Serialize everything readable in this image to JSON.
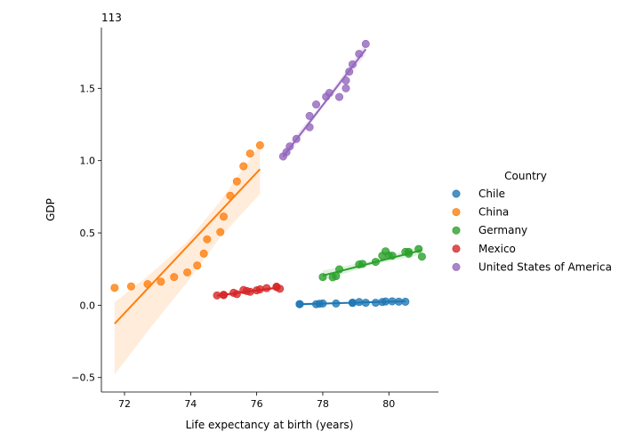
{
  "chart_data": {
    "type": "scatter",
    "xlabel": "Life expectancy at birth (years)",
    "ylabel": "GDP",
    "y_offset_label": "1e13",
    "xlim": [
      71.3,
      81.5
    ],
    "ylim": [
      -0.6,
      1.92
    ],
    "x_ticks": [
      72,
      74,
      76,
      78,
      80
    ],
    "x_tick_labels": [
      "72",
      "74",
      "76",
      "78",
      "80"
    ],
    "y_ticks": [
      -0.5,
      0.0,
      0.5,
      1.0,
      1.5
    ],
    "y_tick_labels": [
      "−0.5",
      "0.0",
      "0.5",
      "1.0",
      "1.5"
    ],
    "grid": false,
    "legend": {
      "title": "Country",
      "placement": "right"
    },
    "series": [
      {
        "name": "Chile",
        "color": "#1f77b4",
        "points": [
          [
            77.3,
            0.007
          ],
          [
            77.3,
            0.008
          ],
          [
            77.8,
            0.007
          ],
          [
            77.9,
            0.01
          ],
          [
            78.0,
            0.012
          ],
          [
            78.4,
            0.012
          ],
          [
            78.9,
            0.016
          ],
          [
            78.9,
            0.018
          ],
          [
            79.1,
            0.022
          ],
          [
            79.3,
            0.017
          ],
          [
            79.6,
            0.017
          ],
          [
            79.8,
            0.022
          ],
          [
            79.9,
            0.026
          ],
          [
            80.1,
            0.027
          ],
          [
            80.3,
            0.025
          ],
          [
            80.5,
            0.024
          ]
        ],
        "fit": [
          77.3,
          0.007,
          80.5,
          0.028
        ],
        "ci": [
          [
            77.3,
            -0.004,
            0.018
          ],
          [
            78.9,
            0.012,
            0.022
          ],
          [
            80.5,
            0.02,
            0.036
          ]
        ]
      },
      {
        "name": "China",
        "color": "#ff7f0e",
        "points": [
          [
            71.7,
            0.12
          ],
          [
            72.2,
            0.13
          ],
          [
            72.7,
            0.146
          ],
          [
            73.1,
            0.163
          ],
          [
            73.5,
            0.195
          ],
          [
            73.9,
            0.227
          ],
          [
            74.2,
            0.275
          ],
          [
            74.4,
            0.357
          ],
          [
            74.5,
            0.456
          ],
          [
            74.9,
            0.506
          ],
          [
            75.0,
            0.613
          ],
          [
            75.2,
            0.757
          ],
          [
            75.4,
            0.856
          ],
          [
            75.6,
            0.961
          ],
          [
            75.8,
            1.049
          ],
          [
            76.1,
            1.106
          ]
        ],
        "fit": [
          71.7,
          -0.128,
          76.1,
          0.941
        ],
        "ci": [
          [
            71.7,
            -0.48,
            0.02
          ],
          [
            72.8,
            -0.15,
            0.22
          ],
          [
            73.9,
            0.16,
            0.44
          ],
          [
            74.9,
            0.47,
            0.72
          ],
          [
            76.1,
            0.77,
            1.11
          ]
        ]
      },
      {
        "name": "Germany",
        "color": "#2ca02c",
        "points": [
          [
            78.0,
            0.195
          ],
          [
            78.3,
            0.193
          ],
          [
            78.4,
            0.201
          ],
          [
            78.5,
            0.248
          ],
          [
            79.1,
            0.282
          ],
          [
            79.2,
            0.286
          ],
          [
            79.6,
            0.3
          ],
          [
            79.8,
            0.342
          ],
          [
            79.9,
            0.373
          ],
          [
            80.0,
            0.344
          ],
          [
            80.1,
            0.343
          ],
          [
            80.5,
            0.369
          ],
          [
            80.6,
            0.369
          ],
          [
            80.6,
            0.356
          ],
          [
            80.9,
            0.389
          ],
          [
            81.0,
            0.336
          ]
        ],
        "fit": [
          78.0,
          0.205,
          81.0,
          0.381
        ],
        "ci": [
          [
            78.0,
            0.17,
            0.24
          ],
          [
            79.5,
            0.28,
            0.31
          ],
          [
            81.0,
            0.35,
            0.41
          ]
        ]
      },
      {
        "name": "Mexico",
        "color": "#d62728",
        "points": [
          [
            74.8,
            0.068
          ],
          [
            75.0,
            0.07
          ],
          [
            75.0,
            0.072
          ],
          [
            75.3,
            0.086
          ],
          [
            75.4,
            0.077
          ],
          [
            75.6,
            0.105
          ],
          [
            75.7,
            0.098
          ],
          [
            75.8,
            0.093
          ],
          [
            76.0,
            0.103
          ],
          [
            76.1,
            0.11
          ],
          [
            76.3,
            0.118
          ],
          [
            76.6,
            0.126
          ],
          [
            76.6,
            0.128
          ],
          [
            76.7,
            0.114
          ]
        ],
        "fit": [
          74.8,
          0.066,
          76.7,
          0.124
        ],
        "ci": [
          [
            74.8,
            0.05,
            0.08
          ],
          [
            75.8,
            0.09,
            0.1
          ],
          [
            76.7,
            0.11,
            0.14
          ]
        ]
      },
      {
        "name": "United States of America",
        "color": "#9467bd",
        "points": [
          [
            76.8,
            1.029
          ],
          [
            76.9,
            1.058
          ],
          [
            77.0,
            1.098
          ],
          [
            77.2,
            1.15
          ],
          [
            77.6,
            1.231
          ],
          [
            77.6,
            1.309
          ],
          [
            77.8,
            1.388
          ],
          [
            78.1,
            1.442
          ],
          [
            78.2,
            1.468
          ],
          [
            78.5,
            1.44
          ],
          [
            78.7,
            1.5
          ],
          [
            78.7,
            1.554
          ],
          [
            78.8,
            1.615
          ],
          [
            78.9,
            1.666
          ],
          [
            79.1,
            1.738
          ],
          [
            79.3,
            1.807
          ]
        ],
        "fit": [
          76.8,
          1.027,
          79.3,
          1.77
        ],
        "ci": [
          [
            76.8,
            0.99,
            1.07
          ],
          [
            78.0,
            1.37,
            1.4
          ],
          [
            79.3,
            1.73,
            1.81
          ]
        ]
      }
    ]
  }
}
